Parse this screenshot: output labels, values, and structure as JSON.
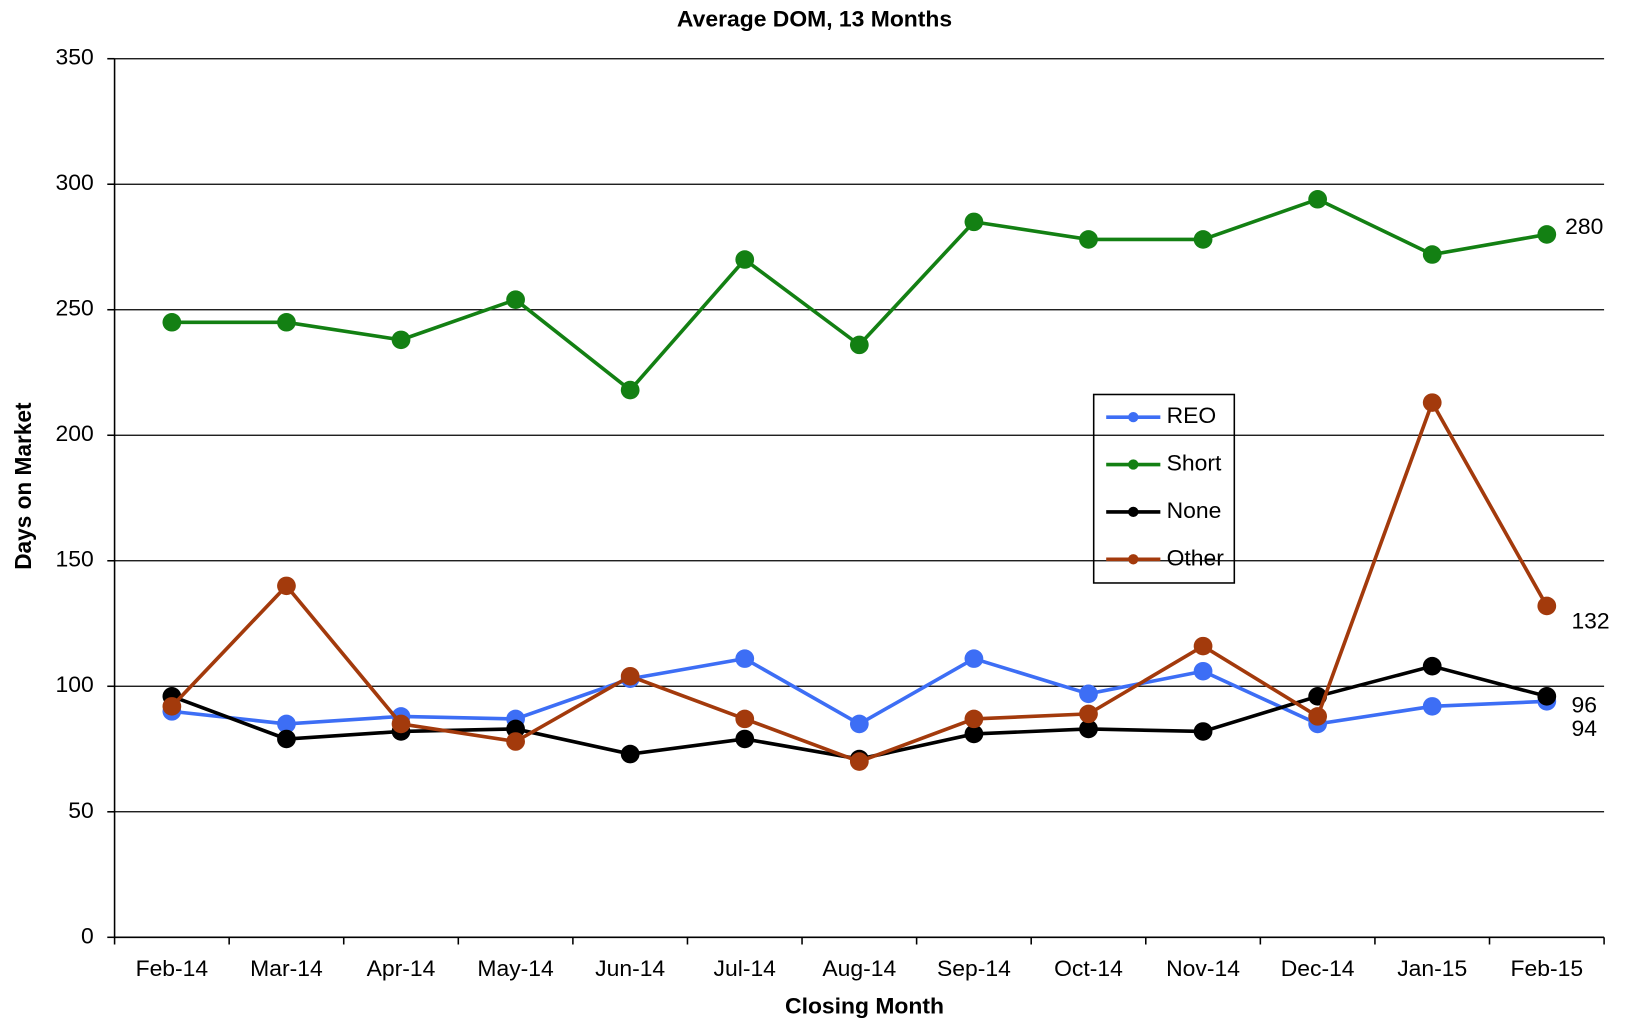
{
  "chart_data": {
    "type": "line",
    "title": "Average DOM, 13 Months",
    "x_label": "Closing Month",
    "y_label": "Days on Market",
    "categories": [
      "Feb-14",
      "Mar-14",
      "Apr-14",
      "May-14",
      "Jun-14",
      "Jul-14",
      "Aug-14",
      "Sep-14",
      "Oct-14",
      "Nov-14",
      "Dec-14",
      "Jan-15",
      "Feb-15"
    ],
    "series": [
      {
        "name": "REO",
        "color": "#3d6ef5",
        "values": [
          90,
          85,
          88,
          87,
          103,
          111,
          85,
          111,
          97,
          106,
          85,
          92,
          94
        ]
      },
      {
        "name": "Short",
        "color": "#138013",
        "values": [
          245,
          245,
          238,
          254,
          218,
          270,
          236,
          285,
          278,
          278,
          294,
          272,
          280
        ]
      },
      {
        "name": "None",
        "color": "#000000",
        "values": [
          96,
          79,
          82,
          83,
          73,
          79,
          71,
          81,
          83,
          82,
          96,
          108,
          96
        ]
      },
      {
        "name": "Other",
        "color": "#a33a0c",
        "values": [
          92,
          140,
          85,
          78,
          104,
          87,
          70,
          87,
          89,
          116,
          88,
          213,
          132
        ]
      }
    ],
    "ylim": [
      0,
      350
    ],
    "yticks": [
      0,
      50,
      100,
      150,
      200,
      250,
      300,
      350
    ],
    "grid": true,
    "legend": "right"
  }
}
